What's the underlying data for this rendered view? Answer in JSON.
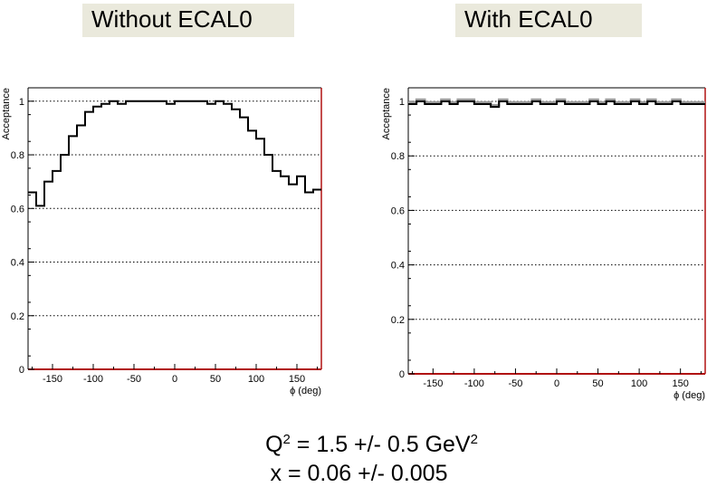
{
  "chart_data": [
    {
      "type": "line",
      "title": "Without ECAL0",
      "xlabel": "ϕ (deg)",
      "ylabel": "Acceptance",
      "xlim": [
        -180,
        180
      ],
      "ylim": [
        0,
        1.05
      ],
      "xticks": [
        -150,
        -100,
        -50,
        0,
        50,
        100,
        150
      ],
      "xtick_labels": [
        "-150",
        "-100",
        "-50",
        "0",
        "50",
        "100",
        "150"
      ],
      "yticks": [
        0,
        0.2,
        0.4,
        0.6,
        0.8,
        1
      ],
      "ytick_labels": [
        "0",
        "0.2",
        "0.4",
        "0.6",
        "0.8",
        "1"
      ],
      "grid": "horizontal dotted",
      "series": [
        {
          "style": "histogram",
          "bin_edges": [
            -180,
            -170,
            -160,
            -150,
            -140,
            -130,
            -120,
            -110,
            -100,
            -90,
            -80,
            -70,
            -60,
            -50,
            -40,
            -30,
            -20,
            -10,
            0,
            10,
            20,
            30,
            40,
            50,
            60,
            70,
            80,
            90,
            100,
            110,
            120,
            130,
            140,
            150,
            160,
            170,
            180
          ],
          "values": [
            0.66,
            0.61,
            0.7,
            0.74,
            0.8,
            0.87,
            0.91,
            0.96,
            0.98,
            0.99,
            1.0,
            0.99,
            1.0,
            1.0,
            1.0,
            1.0,
            1.0,
            0.99,
            1.0,
            1.0,
            1.0,
            1.0,
            0.99,
            1.0,
            0.99,
            0.97,
            0.94,
            0.89,
            0.86,
            0.8,
            0.74,
            0.72,
            0.69,
            0.72,
            0.66,
            0.67
          ]
        }
      ]
    },
    {
      "type": "line",
      "title": "With ECAL0",
      "xlabel": "ϕ (deg)",
      "ylabel": "Acceptance",
      "xlim": [
        -180,
        180
      ],
      "ylim": [
        0,
        1.05
      ],
      "xticks": [
        -150,
        -100,
        -50,
        0,
        50,
        100,
        150
      ],
      "xtick_labels": [
        "-150",
        "-100",
        "-50",
        "0",
        "50",
        "100",
        "150"
      ],
      "yticks": [
        0,
        0.2,
        0.4,
        0.6,
        0.8,
        1
      ],
      "ytick_labels": [
        "0",
        "0.2",
        "0.4",
        "0.6",
        "0.8",
        "1"
      ],
      "grid": "horizontal dotted",
      "series": [
        {
          "style": "histogram",
          "bin_edges": [
            -180,
            -170,
            -160,
            -150,
            -140,
            -130,
            -120,
            -110,
            -100,
            -90,
            -80,
            -70,
            -60,
            -50,
            -40,
            -30,
            -20,
            -10,
            0,
            10,
            20,
            30,
            40,
            50,
            60,
            70,
            80,
            90,
            100,
            110,
            120,
            130,
            140,
            150,
            160,
            170,
            180
          ],
          "values": [
            0.99,
            1.0,
            0.99,
            0.99,
            1.0,
            0.99,
            1.0,
            1.0,
            0.99,
            0.99,
            0.98,
            1.0,
            0.99,
            0.99,
            0.99,
            1.0,
            0.99,
            0.99,
            1.0,
            0.99,
            0.99,
            0.99,
            1.0,
            0.99,
            1.0,
            0.99,
            0.99,
            1.0,
            0.99,
            1.0,
            0.99,
            0.99,
            1.0,
            0.99,
            0.99,
            0.99
          ]
        }
      ]
    }
  ],
  "captions": {
    "q2_prefix": "Q",
    "q2_sup": "2",
    "q2_middle": " = 1.5 +/- 0.5 GeV",
    "q2_unit_sup": "2",
    "x_line": "x = 0.06 +/- 0.005"
  }
}
